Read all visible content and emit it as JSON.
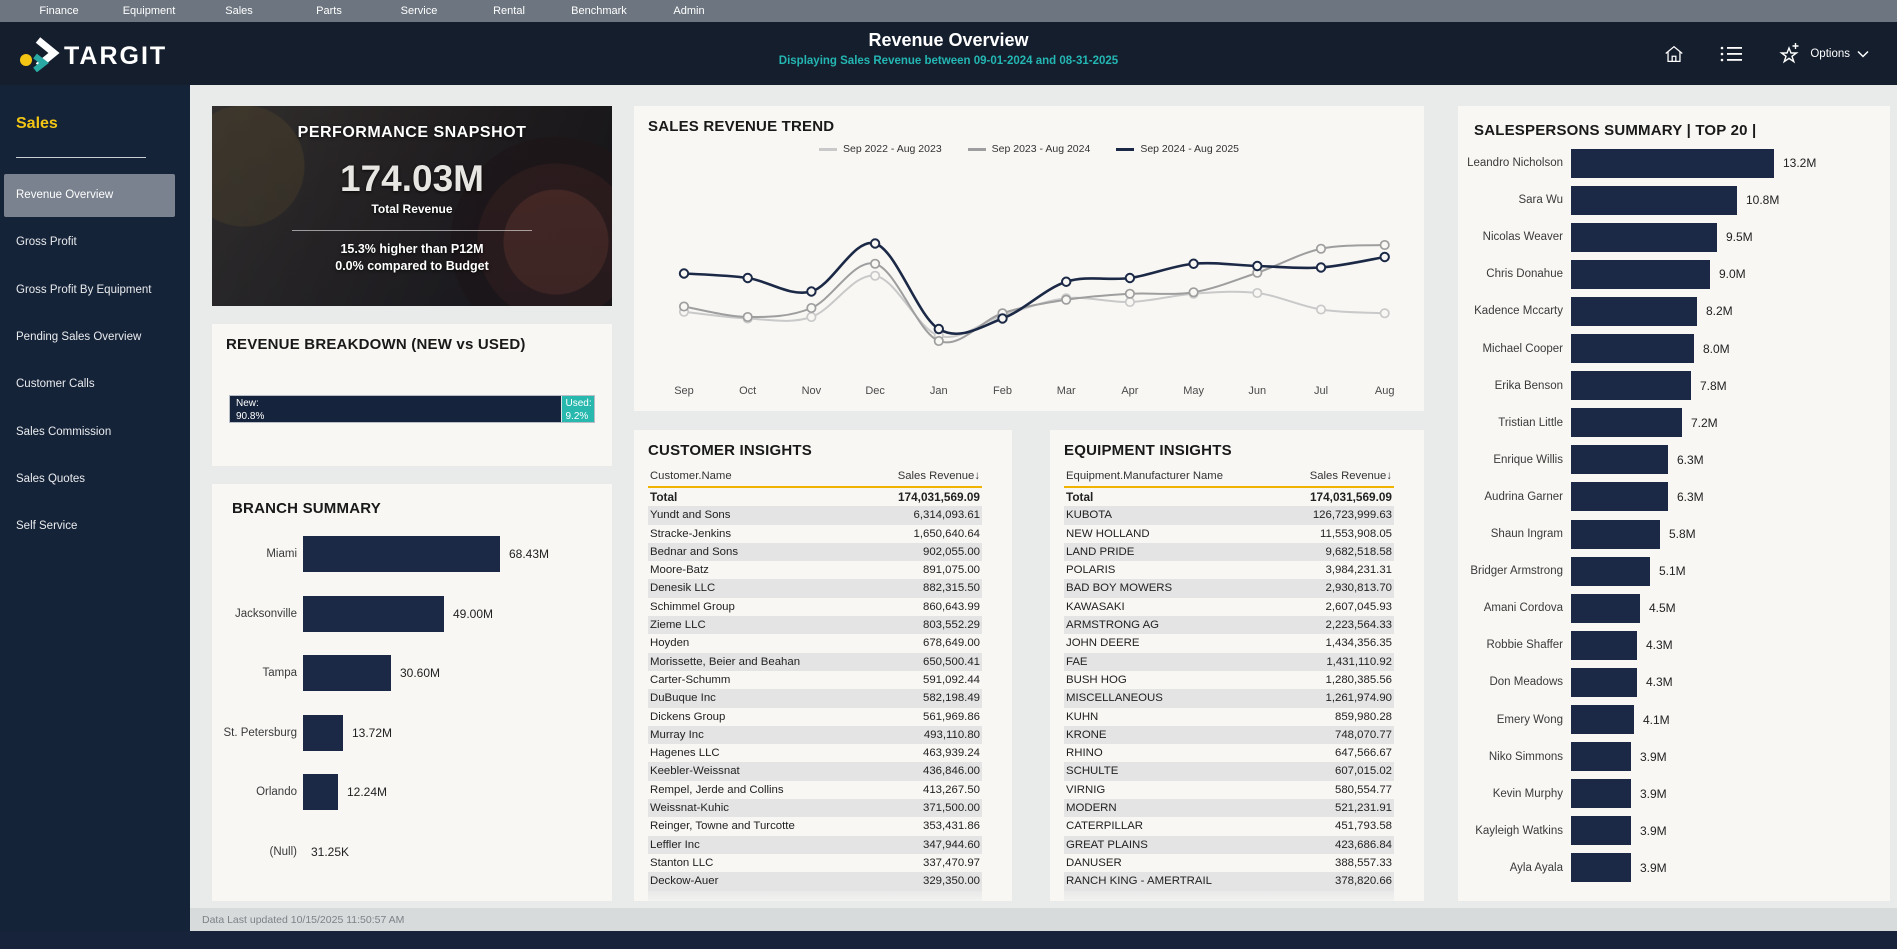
{
  "colors": {
    "accent_teal": "#29b8ae",
    "accent_yellow": "#f3c614",
    "bar_navy": "#1b2946",
    "header_navy": "#141e2d",
    "sidebar_navy": "#152338",
    "table_rule_gold": "#f0b400"
  },
  "topnav": {
    "items": [
      "Finance",
      "Equipment",
      "Sales",
      "Parts",
      "Service",
      "Rental",
      "Benchmark",
      "Admin"
    ]
  },
  "header": {
    "brand": "TARGIT",
    "title": "Revenue Overview",
    "subtitle": "Displaying Sales Revenue between 09-01-2024 and 08-31-2025",
    "options_label": "Options",
    "icons": [
      "home-icon",
      "list-icon",
      "star-plus-icon",
      "chevron-down-icon"
    ]
  },
  "sidebar": {
    "section": "Sales",
    "items": [
      {
        "label": "Revenue Overview",
        "active": true
      },
      {
        "label": "Gross Profit",
        "active": false
      },
      {
        "label": "Gross Profit By Equipment",
        "active": false
      },
      {
        "label": "Pending Sales Overview",
        "active": false
      },
      {
        "label": "Customer Calls",
        "active": false
      },
      {
        "label": "Sales Commission",
        "active": false
      },
      {
        "label": "Sales Quotes",
        "active": false
      },
      {
        "label": "Self Service",
        "active": false
      }
    ]
  },
  "panels": {
    "snapshot": {
      "title": "PERFORMANCE SNAPSHOT",
      "value": "174.03M",
      "value_label": "Total Revenue",
      "line1": "15.3% higher than P12M",
      "line2": "0.0% compared to Budget"
    },
    "breakdown": {
      "title": "REVENUE BREAKDOWN (NEW vs USED)",
      "new_label": "New:",
      "new_pct": "90.8%",
      "used_label": "Used:",
      "used_pct": "9.2%",
      "chart_data": {
        "type": "bar",
        "categories": [
          "New",
          "Used"
        ],
        "values": [
          90.8,
          9.2
        ],
        "unit": "%"
      }
    },
    "branch": {
      "title": "BRANCH SUMMARY",
      "chart_data": {
        "type": "bar",
        "categories": [
          "Miami",
          "Jacksonville",
          "Tampa",
          "St. Petersburg",
          "Orlando",
          "(Null)"
        ],
        "values": [
          68.43,
          49.0,
          30.6,
          13.72,
          12.24,
          0.03125
        ],
        "labels": [
          "68.43M",
          "49.00M",
          "30.60M",
          "13.72M",
          "12.24M",
          "31.25K"
        ]
      }
    },
    "trend": {
      "title": "SALES REVENUE TREND",
      "chart_data": {
        "type": "line",
        "categories": [
          "Sep",
          "Oct",
          "Nov",
          "Dec",
          "Jan",
          "Feb",
          "Mar",
          "Apr",
          "May",
          "Jun",
          "Jul",
          "Aug"
        ],
        "unit": "M (estimated from pixels, no y-axis shown)",
        "series": [
          {
            "name": "Sep 2022 - Aug 2023",
            "color": "#c9c9c9",
            "values": [
              10.9,
              10.0,
              10.2,
              15.7,
              7.7,
              10.4,
              12.7,
              12.2,
              13.3,
              13.4,
              11.2,
              10.7
            ]
          },
          {
            "name": "Sep 2023 - Aug 2024",
            "color": "#9e9e9e",
            "values": [
              11.6,
              10.2,
              11.4,
              17.3,
              7.0,
              10.7,
              12.5,
              13.3,
              13.5,
              16.1,
              19.3,
              19.8
            ]
          },
          {
            "name": "Sep 2024 - Aug 2025",
            "color": "#1b2946",
            "values": [
              16.0,
              15.4,
              13.6,
              20.0,
              8.6,
              10.0,
              14.9,
              15.4,
              17.3,
              17.0,
              16.8,
              18.2
            ]
          }
        ],
        "legend_position": "top"
      }
    },
    "customer": {
      "title": "CUSTOMER INSIGHTS",
      "columns": [
        "Customer.Name",
        "Sales Revenue"
      ],
      "sort_icon": "↓",
      "total_label": "Total",
      "total_value": "174,031,569.09",
      "rows": [
        [
          "Yundt and Sons",
          "6,314,093.61"
        ],
        [
          "Stracke-Jenkins",
          "1,650,640.64"
        ],
        [
          "Bednar and Sons",
          "902,055.00"
        ],
        [
          "Moore-Batz",
          "891,075.00"
        ],
        [
          "Denesik LLC",
          "882,315.50"
        ],
        [
          "Schimmel Group",
          "860,643.99"
        ],
        [
          "Zieme LLC",
          "803,552.29"
        ],
        [
          "Hoyden",
          "678,649.00"
        ],
        [
          "Morissette, Beier and Beahan",
          "650,500.41"
        ],
        [
          "Carter-Schumm",
          "591,092.44"
        ],
        [
          "DuBuque Inc",
          "582,198.49"
        ],
        [
          "Dickens Group",
          "561,969.86"
        ],
        [
          "Murray Inc",
          "493,110.80"
        ],
        [
          "Hagenes LLC",
          "463,939.24"
        ],
        [
          "Keebler-Weissnat",
          "436,846.00"
        ],
        [
          "Rempel, Jerde and Collins",
          "413,267.50"
        ],
        [
          "Weissnat-Kuhic",
          "371,500.00"
        ],
        [
          "Reinger, Towne and Turcotte",
          "353,431.86"
        ],
        [
          "Leffler Inc",
          "347,944.60"
        ],
        [
          "Stanton LLC",
          "337,470.97"
        ],
        [
          "Deckow-Auer",
          "329,350.00"
        ]
      ]
    },
    "equipment": {
      "title": "EQUIPMENT INSIGHTS",
      "columns": [
        "Equipment.Manufacturer Name",
        "Sales Revenue"
      ],
      "sort_icon": "↓",
      "total_label": "Total",
      "total_value": "174,031,569.09",
      "rows": [
        [
          "KUBOTA",
          "126,723,999.63"
        ],
        [
          "NEW HOLLAND",
          "11,553,908.05"
        ],
        [
          "LAND PRIDE",
          "9,682,518.58"
        ],
        [
          "POLARIS",
          "3,984,231.31"
        ],
        [
          "BAD BOY MOWERS",
          "2,930,813.70"
        ],
        [
          "KAWASAKI",
          "2,607,045.93"
        ],
        [
          "ARMSTRONG AG",
          "2,223,564.33"
        ],
        [
          "JOHN DEERE",
          "1,434,356.35"
        ],
        [
          "FAE",
          "1,431,110.92"
        ],
        [
          "BUSH HOG",
          "1,280,385.56"
        ],
        [
          "MISCELLANEOUS",
          "1,261,974.90"
        ],
        [
          "KUHN",
          "859,980.28"
        ],
        [
          "KRONE",
          "748,070.77"
        ],
        [
          "RHINO",
          "647,566.67"
        ],
        [
          "SCHULTE",
          "607,015.02"
        ],
        [
          "VIRNIG",
          "580,554.77"
        ],
        [
          "MODERN",
          "521,231.91"
        ],
        [
          "CATERPILLAR",
          "451,793.58"
        ],
        [
          "GREAT PLAINS",
          "423,686.84"
        ],
        [
          "DANUSER",
          "388,557.33"
        ],
        [
          "RANCH KING - AMERTRAIL",
          "378,820.66"
        ]
      ]
    },
    "salespersons": {
      "title": "SALESPERSONS SUMMARY | TOP 20 |",
      "chart_data": {
        "type": "bar",
        "categories": [
          "Leandro Nicholson",
          "Sara Wu",
          "Nicolas Weaver",
          "Chris Donahue",
          "Kadence Mccarty",
          "Michael Cooper",
          "Erika Benson",
          "Tristian Little",
          "Enrique Willis",
          "Audrina Garner",
          "Shaun Ingram",
          "Bridger Armstrong",
          "Amani Cordova",
          "Robbie Shaffer",
          "Don Meadows",
          "Emery Wong",
          "Niko Simmons",
          "Kevin Murphy",
          "Kayleigh Watkins",
          "Ayla Ayala"
        ],
        "values": [
          13.2,
          10.8,
          9.5,
          9.0,
          8.2,
          8.0,
          7.8,
          7.2,
          6.3,
          6.3,
          5.8,
          5.1,
          4.5,
          4.3,
          4.3,
          4.1,
          3.9,
          3.9,
          3.9,
          3.9
        ],
        "labels": [
          "13.2M",
          "10.8M",
          "9.5M",
          "9.0M",
          "8.2M",
          "8.0M",
          "7.8M",
          "7.2M",
          "6.3M",
          "6.3M",
          "5.8M",
          "5.1M",
          "4.5M",
          "4.3M",
          "4.3M",
          "4.1M",
          "3.9M",
          "3.9M",
          "3.9M",
          "3.9M"
        ]
      }
    }
  },
  "footer": {
    "updated": "Data Last updated 10/15/2025 11:50:57 AM"
  }
}
